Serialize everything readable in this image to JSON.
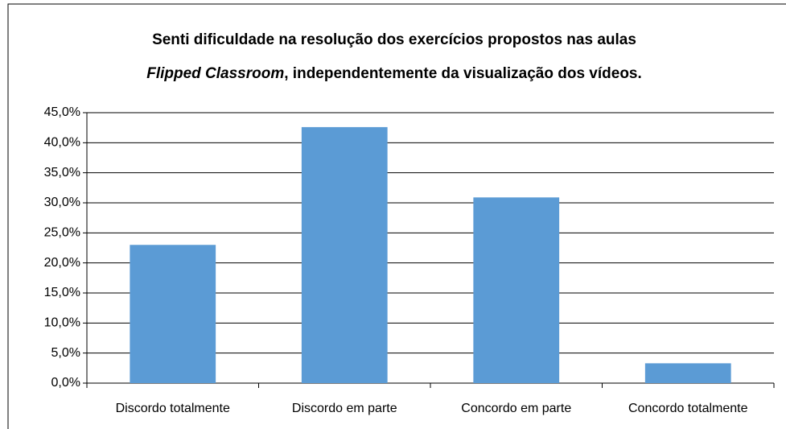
{
  "chart_data": {
    "type": "bar",
    "title": [
      "Senti dificuldade na resolução dos exercícios propostos nas aulas",
      "Flipped Classroom",
      ", independentemente da visualização dos vídeos."
    ],
    "categories": [
      "Discordo totalmente",
      "Discordo em parte",
      "Concordo em parte",
      "Concordo totalmente"
    ],
    "values": [
      23.0,
      42.6,
      30.9,
      3.3
    ],
    "color": "#5b9bd5",
    "ylim": [
      0,
      45
    ],
    "yticks": [
      {
        "value": 0,
        "label": "0,0%"
      },
      {
        "value": 5,
        "label": "5,0%"
      },
      {
        "value": 10,
        "label": "10,0%"
      },
      {
        "value": 15,
        "label": "15,0%"
      },
      {
        "value": 20,
        "label": "20,0%"
      },
      {
        "value": 25,
        "label": "25,0%"
      },
      {
        "value": 30,
        "label": "30,0%"
      },
      {
        "value": 35,
        "label": "35,0%"
      },
      {
        "value": 40,
        "label": "40,0%"
      },
      {
        "value": 45,
        "label": "45,0%"
      }
    ],
    "grid": true
  }
}
